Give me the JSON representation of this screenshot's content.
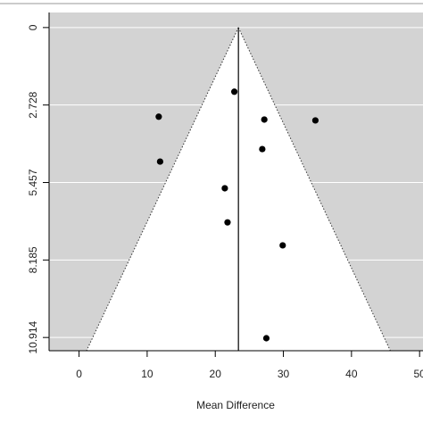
{
  "chart_data": {
    "type": "scatter",
    "xlabel": "Mean Difference",
    "x": [
      22.8,
      11.7,
      27.2,
      34.7,
      26.9,
      11.9,
      21.4,
      21.8,
      29.9,
      27.5
    ],
    "values": [
      2.26,
      3.14,
      3.24,
      3.27,
      4.28,
      4.72,
      5.66,
      6.86,
      7.67,
      10.94
    ],
    "color": "#000000",
    "xlim": [
      -4.4,
      50.5
    ],
    "xticks": [
      0,
      10,
      20,
      30,
      40,
      50
    ],
    "ylim": [
      -0.53,
      11.38
    ],
    "yticks": [
      0,
      2.728,
      5.457,
      8.185,
      10.914
    ],
    "y_reversed": true,
    "grid": true,
    "pooled_estimate": 23.4,
    "funnel_z": 1.96,
    "background": "#d3d3d3",
    "funnel_color": "#ffffff"
  }
}
